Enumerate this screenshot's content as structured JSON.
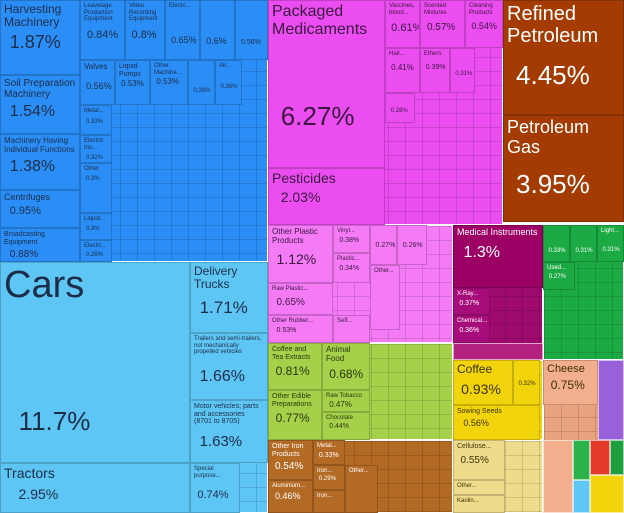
{
  "chart_data": {
    "type": "treemap",
    "categories": [
      "Harvesting Machinery",
      "Soil Preparation Machinery",
      "Machinery Having Individual Functions",
      "Centrifuges",
      "Broadcasting Equipment",
      "Leavelage Production Equipment",
      "Video Recording Equipment",
      "Electri...",
      null,
      null,
      "Valves",
      "Liquid Pumps",
      "Other Machine...",
      null,
      "Air...",
      "Metal...",
      "Electric Ins...",
      "Other",
      "Liquid...",
      "Electri...",
      "Cars",
      "Tractors",
      "Delivery Trucks",
      "Trailers and semi-trailers, not mechanically propelled vehicles",
      "Motor vehicles; parts and accessories (8701 to 8705)",
      "Special purpose...",
      "Packaged Medicaments",
      "Pesticides",
      "Vaccines, blood...",
      "Scented Mixtures",
      "Cleaning Products",
      "Hair...",
      "Ethers",
      null,
      null,
      "Refined Petroleum",
      "Petroleum Gas",
      "Other Plastic Products",
      "Raw Plastic...",
      "Other Rubber...",
      "Vinyl...",
      "Plastic...",
      null,
      null,
      "Other...",
      "Self...",
      "Medical Instruments",
      "X-Ray...",
      "Chemical...",
      null,
      null,
      "Light...",
      "Used...",
      "Coffee and Tea Extracts",
      "Other Edible Preparations",
      "Animal Food",
      "Raw Tobacco",
      "Chocolate",
      "Other Iron Products",
      "Aluminium...",
      "Metal...",
      "Iron...",
      "Iron...",
      "Other...",
      "Coffee",
      null,
      "Sowing Seeds",
      "Cellulose...",
      "Other...",
      "Kaolin...",
      "Cheese"
    ],
    "values": [
      1.87,
      1.54,
      1.38,
      0.95,
      0.88,
      0.84,
      0.8,
      0.65,
      0.6,
      0.56,
      0.56,
      0.53,
      0.53,
      0.39,
      0.36,
      0.33,
      0.32,
      0.3,
      0.3,
      0.26,
      11.7,
      2.95,
      1.71,
      1.66,
      1.63,
      0.74,
      6.27,
      2.03,
      0.61,
      0.57,
      0.54,
      0.41,
      0.39,
      0.31,
      0.28,
      4.45,
      3.95,
      1.12,
      0.65,
      0.53,
      0.38,
      0.34,
      0.27,
      0.26,
      null,
      null,
      1.3,
      0.37,
      0.36,
      0.33,
      0.31,
      0.31,
      0.27,
      0.81,
      0.77,
      0.68,
      0.47,
      0.44,
      0.54,
      0.46,
      0.33,
      0.29,
      null,
      null,
      0.93,
      0.32,
      0.56,
      0.55,
      null,
      null,
      0.75
    ],
    "value_labels": [
      "1.87%",
      "1.54%",
      "1.38%",
      "0.95%",
      "0.88%",
      "0.84%",
      "0.8%",
      "0.65%",
      "0.6%",
      "0.56%",
      "0.56%",
      "0.53%",
      "0.53%",
      "0.39%",
      "0.36%",
      "0.33%",
      "0.32%",
      "0.3%",
      "0.3%",
      "0.26%",
      "11.7%",
      "2.95%",
      "1.71%",
      "1.66%",
      "1.63%",
      "0.74%",
      "6.27%",
      "2.03%",
      "0.61%",
      "0.57%",
      "0.54%",
      "0.41%",
      "0.39%",
      "0.31%",
      "0.28%",
      "4.45%",
      "3.95%",
      "1.12%",
      "0.65%",
      "0.53%",
      "0.38%",
      "0.34%",
      "0.27%",
      "0.26%",
      null,
      null,
      "1.3%",
      "0.37%",
      "0.36%",
      "0.33%",
      "0.31%",
      "0.31%",
      "0.27%",
      "0.81%",
      "0.77%",
      "0.68%",
      "0.47%",
      "0.44%",
      "0.54%",
      "0.46%",
      "0.33%",
      "0.29%",
      null,
      null,
      "0.93%",
      "0.32%",
      "0.56%",
      "0.55%",
      null,
      null,
      "0.75%"
    ],
    "colors": [
      "#2a8ef6",
      "#2a8ef6",
      "#2a8ef6",
      "#2a8ef6",
      "#2a8ef6",
      "#2a8ef6",
      "#2a8ef6",
      "#2a8ef6",
      "#2a8ef6",
      "#2a8ef6",
      "#2a8ef6",
      "#2a8ef6",
      "#2a8ef6",
      "#2a8ef6",
      "#2a8ef6",
      "#2a8ef6",
      "#2a8ef6",
      "#2a8ef6",
      "#2a8ef6",
      "#2a8ef6",
      "#5ec6f4",
      "#5ec6f4",
      "#5ec6f4",
      "#5ec6f4",
      "#5ec6f4",
      "#5ec6f4",
      "#ec4df0",
      "#ec4df0",
      "#ec4df0",
      "#ec4df0",
      "#ec4df0",
      "#ec4df0",
      "#ec4df0",
      "#ec4df0",
      "#ec4df0",
      "#a33b03",
      "#a33b03",
      "#f57bf6",
      "#f57bf6",
      "#f57bf6",
      "#f57bf6",
      "#f57bf6",
      "#f57bf6",
      "#f57bf6",
      "#f57bf6",
      "#f57bf6",
      "#9c0064",
      "#a60d7a",
      "#a60d7a",
      "#1caa44",
      "#1caa44",
      "#1caa44",
      "#1caa44",
      "#a5d04a",
      "#a5d04a",
      "#a5d04a",
      "#a5d04a",
      "#a5d04a",
      "#b36a24",
      "#b36a24",
      "#b36a24",
      "#b36a24",
      "#b36a24",
      "#b36a24",
      "#f2d40c",
      "#f2d40c",
      "#f2d40c",
      "#eedc8c",
      "#eedc8c",
      "#eedc8c",
      "#f3ae8e"
    ]
  }
}
